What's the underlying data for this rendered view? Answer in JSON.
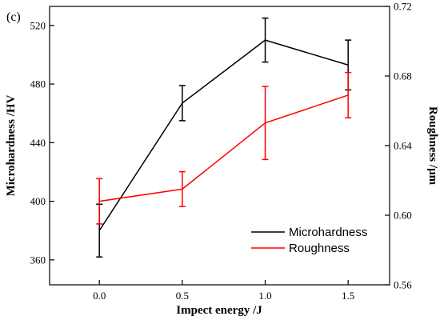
{
  "panel_label": "(c)",
  "chart_data": {
    "type": "line",
    "xlabel": "Impect energy /J",
    "ylabel_left": "Microhardness /HV",
    "ylabel_right": "Roughness /μm",
    "x": [
      0.0,
      0.5,
      1.0,
      1.5
    ],
    "x_ticks": [
      "0.0",
      "0.5",
      "1.0",
      "1.5"
    ],
    "xlim": [
      -0.3,
      1.75
    ],
    "ylim_left": [
      343,
      533
    ],
    "ylim_right": [
      0.56,
      0.72
    ],
    "y_ticks_left": [
      "360",
      "400",
      "440",
      "480",
      "520"
    ],
    "y_ticks_right": [
      "0.56",
      "0.60",
      "0.64",
      "0.68",
      "0.72"
    ],
    "grid": false,
    "legend_position": "bottom-right",
    "series": [
      {
        "name": "Microhardness",
        "axis": "left",
        "color": "#000000",
        "values": [
          380,
          467,
          510,
          493
        ],
        "error": [
          18,
          12,
          15,
          17
        ]
      },
      {
        "name": "Roughness",
        "axis": "right",
        "color": "#ff0000",
        "values": [
          0.608,
          0.615,
          0.653,
          0.669
        ],
        "error": [
          0.013,
          0.01,
          0.021,
          0.013
        ]
      }
    ]
  }
}
